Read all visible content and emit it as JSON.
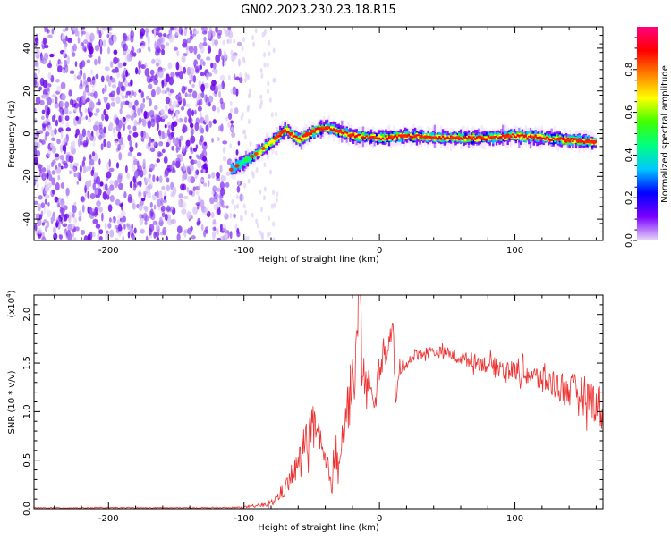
{
  "title": "GN02.2023.230.23.18.R15",
  "colorbar": {
    "label": "Normalized spectral amplitude",
    "ticks": [
      "0.0",
      "0.2",
      "0.4",
      "0.6",
      "0.8"
    ],
    "tick_values": [
      0.0,
      0.2,
      0.4,
      0.6,
      0.8
    ],
    "colors": [
      "#e8d8f8",
      "#7a00ff",
      "#0000ff",
      "#00c8ff",
      "#00ff80",
      "#40ff00",
      "#ffff00",
      "#ff8000",
      "#ff0000",
      "#ff0080"
    ]
  },
  "chart_data": [
    {
      "type": "heatmap",
      "xlabel": "Height of straight line (km)",
      "ylabel": "Frequency (Hz)",
      "xlim": [
        -255,
        165
      ],
      "ylim": [
        -50,
        50
      ],
      "xticks": [
        -200,
        -100,
        0,
        100
      ],
      "xtick_labels": [
        "-200",
        "-100",
        "0",
        "100"
      ],
      "yticks": [
        -40,
        -20,
        0,
        20,
        40
      ],
      "ytick_labels": [
        "-40",
        "-20",
        "0",
        "20",
        "40"
      ],
      "noise_region_x": [
        -255,
        -115
      ],
      "ridge": {
        "x": [
          -110,
          -100,
          -90,
          -80,
          -70,
          -60,
          -50,
          -40,
          -30,
          -20,
          0,
          20,
          40,
          60,
          80,
          100,
          120,
          140,
          160
        ],
        "y": [
          -17,
          -13,
          -9,
          -4,
          2,
          -3,
          1,
          3,
          1,
          -1,
          -2,
          -1,
          -2,
          -2,
          -2,
          -1,
          -2,
          -3,
          -4
        ],
        "amplitude": [
          0.35,
          0.45,
          0.6,
          0.75,
          0.8,
          0.8,
          0.85,
          0.9,
          0.95,
          1.0,
          0.95,
          1.0,
          1.0,
          1.0,
          1.0,
          1.0,
          0.95,
          0.9,
          0.85
        ]
      }
    },
    {
      "type": "line",
      "xlabel": "Height of straight line (km)",
      "ylabel": "SNR (10 * v/v)",
      "yscale_label": "(x10",
      "yscale_exp": "4",
      "yscale_close": ")",
      "xlim": [
        -255,
        165
      ],
      "ylim": [
        0.0,
        2.2
      ],
      "xticks": [
        -200,
        -100,
        0,
        100
      ],
      "xtick_labels": [
        "-200",
        "-100",
        "0",
        "100"
      ],
      "yticks": [
        0.0,
        0.5,
        1.0,
        1.5,
        2.0
      ],
      "ytick_labels": [
        "0.0",
        "0.5",
        "1.0",
        "1.5",
        "2.0"
      ],
      "series": [
        {
          "color": "#ee3030",
          "x": [
            -255,
            -200,
            -150,
            -110,
            -95,
            -80,
            -70,
            -60,
            -55,
            -50,
            -45,
            -40,
            -35,
            -30,
            -25,
            -20,
            -17,
            -15,
            -12,
            -10,
            -8,
            -5,
            0,
            5,
            10,
            12,
            15,
            20,
            25,
            30,
            40,
            50,
            60,
            70,
            80,
            90,
            100,
            110,
            120,
            130,
            140,
            150,
            160,
            165
          ],
          "y": [
            0.01,
            0.01,
            0.01,
            0.01,
            0.02,
            0.05,
            0.2,
            0.45,
            0.7,
            0.85,
            0.7,
            0.45,
            0.3,
            0.6,
            0.95,
            1.25,
            1.6,
            2.2,
            1.5,
            1.2,
            1.3,
            1.0,
            1.45,
            1.6,
            1.9,
            1.05,
            1.45,
            1.5,
            1.58,
            1.6,
            1.62,
            1.6,
            1.55,
            1.52,
            1.48,
            1.45,
            1.42,
            1.38,
            1.32,
            1.28,
            1.22,
            1.18,
            1.1,
            1.0
          ],
          "noise": [
            0.005,
            0.005,
            0.005,
            0.005,
            0.01,
            0.03,
            0.08,
            0.15,
            0.2,
            0.25,
            0.2,
            0.15,
            0.15,
            0.2,
            0.25,
            0.3,
            0.35,
            0.3,
            0.3,
            0.25,
            0.25,
            0.2,
            0.15,
            0.1,
            0.1,
            0.1,
            0.08,
            0.06,
            0.06,
            0.06,
            0.06,
            0.06,
            0.07,
            0.08,
            0.09,
            0.1,
            0.1,
            0.12,
            0.14,
            0.16,
            0.18,
            0.2,
            0.22,
            0.25
          ]
        }
      ]
    }
  ]
}
